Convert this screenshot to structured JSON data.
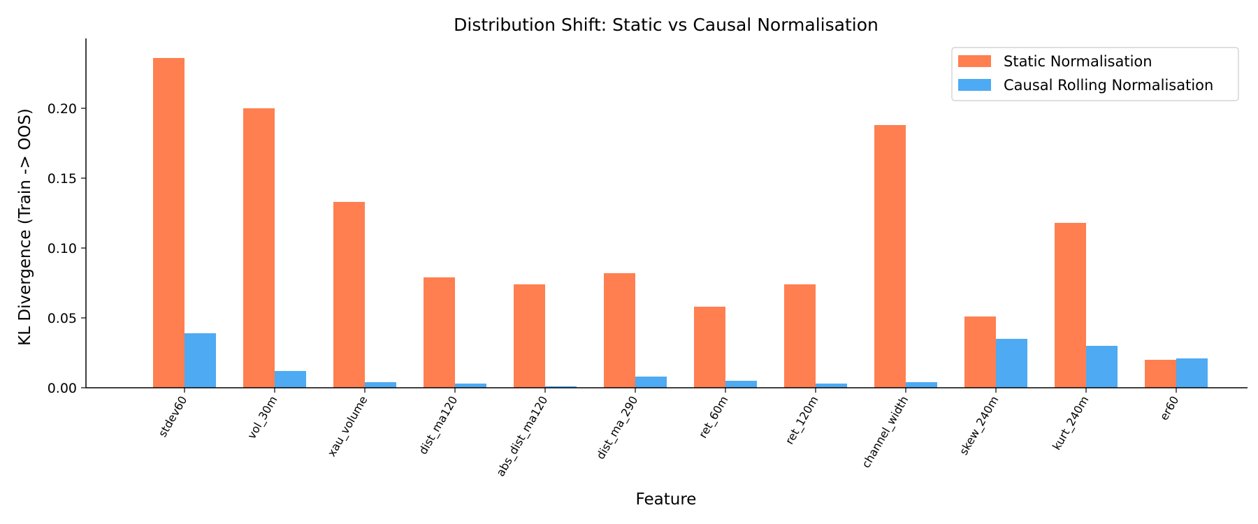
{
  "chart_data": {
    "type": "bar",
    "title": "Distribution Shift: Static vs Causal Normalisation",
    "xlabel": "Feature",
    "ylabel": "KL Divergence (Train -> OOS)",
    "ylim": [
      0,
      0.25
    ],
    "yticks": [
      "0.00",
      "0.05",
      "0.10",
      "0.15",
      "0.20"
    ],
    "categories": [
      "stdev60",
      "vol_30m",
      "xau_volume",
      "dist_ma120",
      "abs_dist_ma120",
      "dist_ma_290",
      "ret_60m",
      "ret_120m",
      "channel_width",
      "skew_240m",
      "kurt_240m",
      "er60"
    ],
    "series": [
      {
        "name": "Static Normalisation",
        "color": "#FF7F50",
        "values": [
          0.236,
          0.2,
          0.133,
          0.079,
          0.074,
          0.082,
          0.058,
          0.074,
          0.188,
          0.051,
          0.118,
          0.02
        ]
      },
      {
        "name": "Causal Rolling Normalisation",
        "color": "#4DAAF3",
        "values": [
          0.039,
          0.012,
          0.004,
          0.003,
          0.001,
          0.008,
          0.005,
          0.003,
          0.004,
          0.035,
          0.03,
          0.021
        ]
      }
    ],
    "legend": "top-right",
    "grid": false
  }
}
